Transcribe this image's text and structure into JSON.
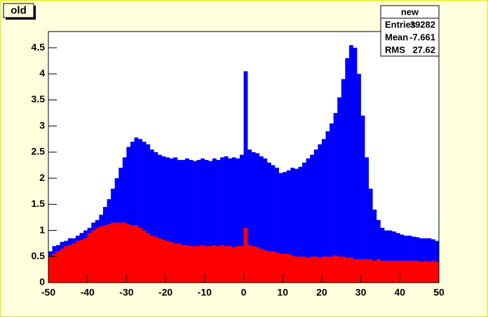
{
  "chart_data": {
    "type": "histogram",
    "title": "old",
    "bins": [
      -50,
      -49,
      -48,
      -47,
      -46,
      -45,
      -44,
      -43,
      -42,
      -41,
      -40,
      -39,
      -38,
      -37,
      -36,
      -35,
      -34,
      -33,
      -32,
      -31,
      -30,
      -29,
      -28,
      -27,
      -26,
      -25,
      -24,
      -23,
      -22,
      -21,
      -20,
      -19,
      -18,
      -17,
      -16,
      -15,
      -14,
      -13,
      -12,
      -11,
      -10,
      -9,
      -8,
      -7,
      -6,
      -5,
      -4,
      -3,
      -2,
      -1,
      0,
      1,
      2,
      3,
      4,
      5,
      6,
      7,
      8,
      9,
      10,
      11,
      12,
      13,
      14,
      15,
      16,
      17,
      18,
      19,
      20,
      21,
      22,
      23,
      24,
      25,
      26,
      27,
      28,
      29,
      30,
      31,
      32,
      33,
      34,
      35,
      36,
      37,
      38,
      39,
      40,
      41,
      42,
      43,
      44,
      45,
      46,
      47,
      48,
      49,
      50
    ],
    "series": [
      {
        "name": "new",
        "color": "#0000ff",
        "values": [
          0.6,
          0.7,
          0.72,
          0.78,
          0.8,
          0.85,
          0.85,
          0.9,
          0.95,
          1.0,
          1.05,
          1.15,
          1.2,
          1.3,
          1.45,
          1.6,
          1.8,
          2.0,
          2.2,
          2.4,
          2.6,
          2.7,
          2.78,
          2.75,
          2.7,
          2.65,
          2.55,
          2.5,
          2.45,
          2.42,
          2.4,
          2.38,
          2.4,
          2.35,
          2.35,
          2.38,
          2.35,
          2.33,
          2.35,
          2.38,
          2.35,
          2.33,
          2.38,
          2.35,
          2.4,
          2.42,
          2.38,
          2.4,
          2.38,
          2.45,
          4.05,
          2.55,
          2.5,
          2.48,
          2.42,
          2.38,
          2.3,
          2.25,
          2.2,
          2.1,
          2.12,
          2.15,
          2.2,
          2.18,
          2.22,
          2.3,
          2.38,
          2.45,
          2.55,
          2.65,
          2.75,
          2.9,
          3.05,
          3.25,
          3.55,
          3.9,
          4.3,
          4.55,
          4.5,
          4.0,
          3.2,
          2.4,
          1.8,
          1.4,
          1.2,
          1.05,
          1.0,
          1.0,
          0.98,
          0.95,
          0.92,
          0.9,
          0.9,
          0.88,
          0.87,
          0.85,
          0.85,
          0.85,
          0.83,
          0.8
        ]
      },
      {
        "name": "old",
        "color": "#ff0000",
        "values": [
          0.5,
          0.55,
          0.6,
          0.65,
          0.7,
          0.72,
          0.75,
          0.8,
          0.82,
          0.85,
          0.95,
          1.0,
          1.05,
          1.08,
          1.1,
          1.12,
          1.15,
          1.15,
          1.15,
          1.15,
          1.12,
          1.1,
          1.1,
          1.05,
          1.0,
          0.95,
          0.9,
          0.88,
          0.85,
          0.82,
          0.8,
          0.78,
          0.75,
          0.75,
          0.72,
          0.72,
          0.7,
          0.7,
          0.7,
          0.72,
          0.7,
          0.7,
          0.72,
          0.7,
          0.72,
          0.7,
          0.7,
          0.68,
          0.7,
          0.7,
          1.05,
          0.72,
          0.7,
          0.68,
          0.65,
          0.62,
          0.6,
          0.6,
          0.58,
          0.55,
          0.55,
          0.55,
          0.52,
          0.5,
          0.5,
          0.5,
          0.48,
          0.5,
          0.5,
          0.48,
          0.5,
          0.5,
          0.5,
          0.52,
          0.5,
          0.5,
          0.48,
          0.48,
          0.45,
          0.45,
          0.45,
          0.45,
          0.45,
          0.42,
          0.45,
          0.42,
          0.42,
          0.42,
          0.42,
          0.42,
          0.42,
          0.42,
          0.42,
          0.42,
          0.42,
          0.4,
          0.42,
          0.4,
          0.42,
          0.4
        ]
      }
    ],
    "xlim": [
      -50,
      50
    ],
    "xticks": [
      -50,
      -40,
      -30,
      -20,
      -10,
      0,
      10,
      20,
      30,
      40,
      50
    ],
    "ylim": [
      0,
      4.81
    ],
    "yticks": [
      0,
      0.5,
      1,
      1.5,
      2,
      2.5,
      3,
      3.5,
      4,
      4.5
    ],
    "stats": {
      "title": "new",
      "rows": [
        [
          "Entries",
          39282
        ],
        [
          "Mean",
          -7.661
        ],
        [
          "RMS",
          27.62
        ]
      ]
    }
  }
}
